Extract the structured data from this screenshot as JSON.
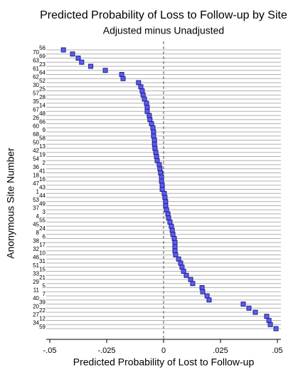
{
  "chart_data": {
    "type": "dot",
    "title": "Predicted Probability of Loss to Follow-up by Site",
    "subtitle": "Adjusted minus Unadjusted",
    "x_label": "Predicted Probability of Lost to Follow-up",
    "y_label": "Anonymous Site Number",
    "categories": [
      "56",
      "70",
      "69",
      "63",
      "23",
      "61",
      "64",
      "62",
      "52",
      "30",
      "25",
      "57",
      "28",
      "35",
      "14",
      "67",
      "48",
      "26",
      "66",
      "60",
      "9",
      "68",
      "58",
      "50",
      "13",
      "42",
      "19",
      "54",
      "2",
      "36",
      "41",
      "18",
      "16",
      "47",
      "43",
      "1",
      "44",
      "53",
      "49",
      "37",
      "3",
      "4",
      "55",
      "45",
      "24",
      "8",
      "6",
      "38",
      "17",
      "32",
      "10",
      "46",
      "31",
      "51",
      "15",
      "33",
      "21",
      "29",
      "5",
      "11",
      "7",
      "40",
      "39",
      "20",
      "22",
      "27",
      "12",
      "34",
      "59"
    ],
    "values": [
      -0.044,
      -0.04,
      -0.0375,
      -0.036,
      -0.032,
      -0.0256,
      -0.0184,
      -0.0178,
      -0.011,
      -0.01,
      -0.0094,
      -0.009,
      -0.0084,
      -0.0075,
      -0.0072,
      -0.0072,
      -0.0063,
      -0.006,
      -0.0053,
      -0.0047,
      -0.0044,
      -0.0044,
      -0.004,
      -0.004,
      -0.0038,
      -0.0034,
      -0.0031,
      -0.0028,
      -0.0019,
      -0.0016,
      -0.0013,
      -0.0009,
      -0.0009,
      -0.0006,
      -0.0006,
      0.0003,
      0.0006,
      0.0009,
      0.0009,
      0.0013,
      0.0019,
      0.0022,
      0.0028,
      0.0034,
      0.0038,
      0.0041,
      0.0047,
      0.005,
      0.005,
      0.005,
      0.0053,
      0.0066,
      0.0075,
      0.0081,
      0.0088,
      0.01,
      0.0119,
      0.0128,
      0.0169,
      0.0172,
      0.0191,
      0.02,
      0.035,
      0.0375,
      0.0403,
      0.0453,
      0.0463,
      0.0469,
      0.0494
    ],
    "color": "#5b5bf0",
    "xlim": [
      -0.05,
      0.05
    ],
    "xticks": [
      {
        "value": -0.05,
        "label": "-.05"
      },
      {
        "value": -0.025,
        "label": "-.025"
      },
      0,
      {
        "value": 0.025,
        "label": ".025"
      },
      {
        "value": 0.05,
        "label": ".05"
      }
    ],
    "reference_line": 0,
    "grid": true
  }
}
